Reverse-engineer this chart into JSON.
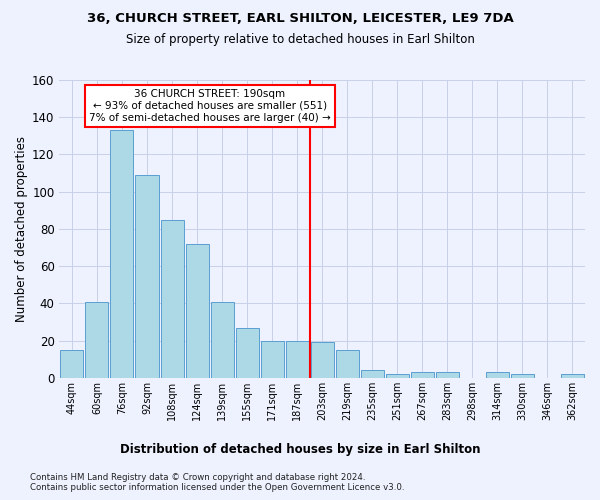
{
  "title": "36, CHURCH STREET, EARL SHILTON, LEICESTER, LE9 7DA",
  "subtitle": "Size of property relative to detached houses in Earl Shilton",
  "xlabel_bottom": "Distribution of detached houses by size in Earl Shilton",
  "ylabel": "Number of detached properties",
  "footnote1": "Contains HM Land Registry data © Crown copyright and database right 2024.",
  "footnote2": "Contains public sector information licensed under the Open Government Licence v3.0.",
  "bar_labels": [
    "44sqm",
    "60sqm",
    "76sqm",
    "92sqm",
    "108sqm",
    "124sqm",
    "139sqm",
    "155sqm",
    "171sqm",
    "187sqm",
    "203sqm",
    "219sqm",
    "235sqm",
    "251sqm",
    "267sqm",
    "283sqm",
    "298sqm",
    "314sqm",
    "330sqm",
    "346sqm",
    "362sqm"
  ],
  "bar_values": [
    15,
    41,
    133,
    109,
    85,
    72,
    41,
    27,
    20,
    20,
    19,
    15,
    4,
    2,
    3,
    3,
    0,
    3,
    2,
    0,
    2
  ],
  "bar_color": "#add8e6",
  "bar_edge_color": "#5a9fd4",
  "background_color": "#eef2ff",
  "grid_color": "#c8d0e8",
  "annotation_line1": "36 CHURCH STREET: 190sqm",
  "annotation_line2": "← 93% of detached houses are smaller (551)",
  "annotation_line3": "7% of semi-detached houses are larger (40) →",
  "annotation_box_color": "white",
  "annotation_box_edge": "red",
  "vline_color": "red",
  "vline_x": 9.5,
  "ylim": [
    0,
    160
  ],
  "yticks": [
    0,
    20,
    40,
    60,
    80,
    100,
    120,
    140,
    160
  ]
}
